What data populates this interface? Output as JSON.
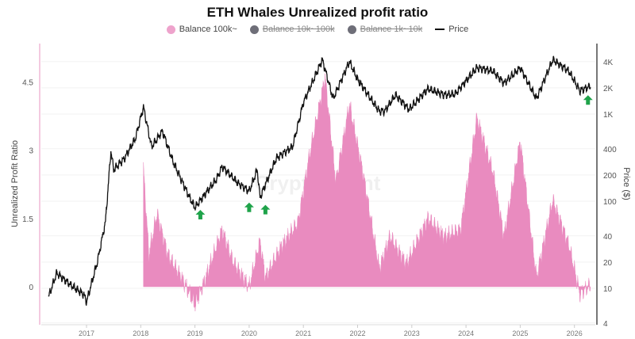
{
  "chart_data": {
    "type": "area+line",
    "title": "ETH Whales Unrealized profit ratio",
    "watermark": "CryptoQuant",
    "legend": [
      {
        "label": "Balance 100k~",
        "color": "#e98bbf",
        "active": true
      },
      {
        "label": "Balance 10k~100k",
        "color": "#6e6e78",
        "active": false
      },
      {
        "label": "Balance 1k~10k",
        "color": "#6e6e78",
        "active": false
      },
      {
        "label": "Price",
        "color": "#111111",
        "active": true
      }
    ],
    "legend_placement": "top-center",
    "ylabel": "Unrealized Profit Ratio",
    "y2label": "Price ($)",
    "x_ticks": [
      "2017",
      "2018",
      "2019",
      "2020",
      "2021",
      "2022",
      "2023",
      "2024",
      "2025",
      "2026"
    ],
    "y_ticks": [
      "0",
      "1.5",
      "3",
      "4.5"
    ],
    "y2_ticks": [
      "4",
      "10",
      "20",
      "40",
      "100",
      "200",
      "400",
      "1K",
      "2K",
      "4K"
    ],
    "y2_scale": "log",
    "grid": "horizontal",
    "ratio_series": {
      "name": "Balance 100k~",
      "x": [
        2018.05,
        2018.15,
        2018.3,
        2018.5,
        2018.8,
        2019.0,
        2019.2,
        2019.5,
        2019.7,
        2020.0,
        2020.2,
        2020.3,
        2020.6,
        2020.9,
        2021.1,
        2021.4,
        2021.6,
        2021.85,
        2022.1,
        2022.4,
        2022.6,
        2022.9,
        2023.3,
        2023.6,
        2023.9,
        2024.2,
        2024.5,
        2024.7,
        2025.0,
        2025.3,
        2025.6,
        2025.9,
        2026.1,
        2026.3
      ],
      "y": [
        2.6,
        0.7,
        1.6,
        0.7,
        0.1,
        -0.4,
        0.2,
        1.25,
        0.55,
        0,
        1.0,
        0.2,
        0.9,
        1.4,
        2.8,
        4.6,
        2.3,
        4.0,
        2.5,
        0.4,
        1.1,
        0.5,
        1.5,
        1.1,
        1.25,
        3.7,
        2.5,
        1.1,
        3.2,
        0.2,
        1.9,
        0.9,
        -0.15,
        0.05
      ]
    },
    "price_series": {
      "name": "Price",
      "x": [
        2016.3,
        2016.45,
        2016.7,
        2016.95,
        2017.0,
        2017.2,
        2017.35,
        2017.45,
        2017.5,
        2017.7,
        2017.9,
        2018.05,
        2018.2,
        2018.4,
        2018.6,
        2018.9,
        2019.0,
        2019.4,
        2019.5,
        2019.8,
        2020.0,
        2020.15,
        2020.2,
        2020.5,
        2020.8,
        2021.0,
        2021.35,
        2021.55,
        2021.85,
        2022.0,
        2022.4,
        2022.5,
        2022.7,
        2022.95,
        2023.3,
        2023.6,
        2023.8,
        2024.2,
        2024.5,
        2024.7,
        2025.0,
        2025.3,
        2025.6,
        2025.9,
        2026.1,
        2026.3
      ],
      "y": [
        8,
        15,
        11,
        8.5,
        7,
        20,
        58,
        380,
        230,
        310,
        520,
        1200,
        420,
        640,
        280,
        110,
        85,
        180,
        250,
        160,
        130,
        230,
        110,
        310,
        420,
        1350,
        4200,
        1500,
        4000,
        2500,
        1080,
        1080,
        1660,
        1130,
        1950,
        1660,
        1700,
        3400,
        3100,
        2260,
        3400,
        1500,
        4200,
        3100,
        1850,
        2100
      ]
    },
    "annotations": [
      {
        "type": "green-up-arrow",
        "x": 2019.1,
        "price": 70
      },
      {
        "type": "green-up-arrow",
        "x": 2020.0,
        "price": 85
      },
      {
        "type": "green-up-arrow",
        "x": 2020.3,
        "price": 80
      },
      {
        "type": "green-up-arrow",
        "x": 2026.25,
        "price": 1450
      }
    ]
  }
}
